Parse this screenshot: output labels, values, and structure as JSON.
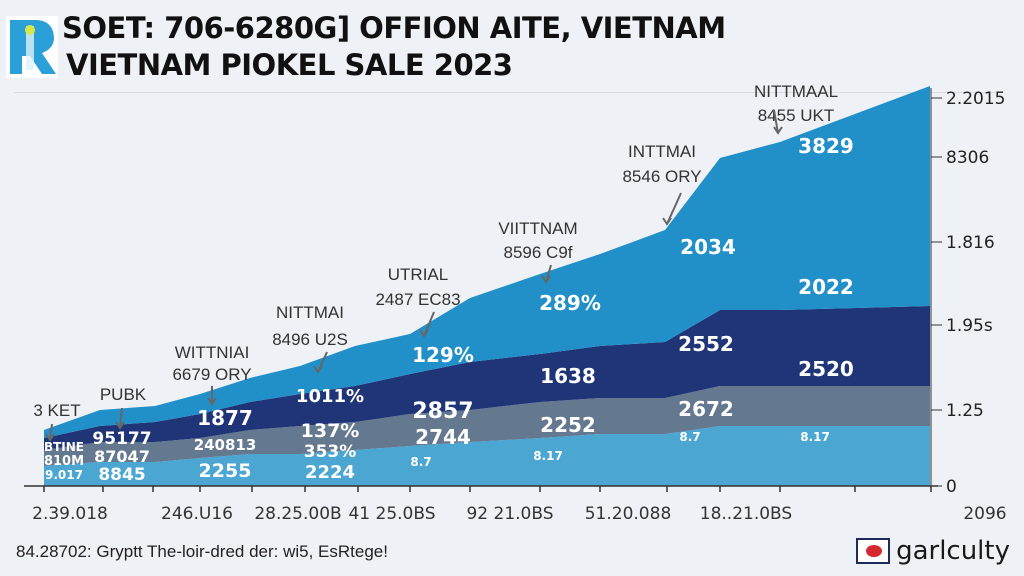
{
  "header": {
    "title_line1": "SOET: 706-6280G] OFFION AITE, VIETNAM",
    "title_line2": "VIETNAM PIOKEL SALE 2023",
    "logo_icon": "r-letter-logo-icon"
  },
  "colors": {
    "layer_top": "#2190c8",
    "layer_navy": "#1f3577",
    "layer_slate": "#64788f",
    "layer_base": "#4ca6d2",
    "background": "#eef1f5"
  },
  "chart_data": {
    "type": "area",
    "stacked": true,
    "title": "VIETNAM PIOKEL SALE 2023",
    "x_tick_labels": [
      "2.39.018",
      "246.U16",
      "28.25.00B",
      "41 25.0BS",
      "92 21.0BS",
      "51.20.088",
      "18..21.0BS",
      "2096"
    ],
    "y_axis_side": "right",
    "y_tick_labels": [
      "0",
      "1.25",
      "1.95s",
      "1.816",
      "8306",
      "2.2015"
    ],
    "y_units": "relative (0-100 of axis height)",
    "ylim": [
      0,
      100
    ],
    "x": [
      0,
      1,
      2,
      3,
      4,
      5,
      6,
      7,
      8,
      9,
      10,
      11,
      12,
      13,
      14
    ],
    "series": [
      {
        "name": "base",
        "values": [
          5,
          6,
          6,
          7,
          8,
          8,
          9,
          10,
          11,
          12,
          13,
          13,
          15,
          15,
          15
        ]
      },
      {
        "name": "slate",
        "values": [
          4,
          5,
          5,
          5,
          6,
          7,
          7,
          8,
          8,
          9,
          9,
          9,
          10,
          10,
          10
        ]
      },
      {
        "name": "navy",
        "values": [
          3,
          4,
          5,
          6,
          7,
          8,
          9,
          10,
          12,
          12,
          13,
          14,
          19,
          19,
          20
        ]
      },
      {
        "name": "top",
        "values": [
          2,
          4,
          4,
          5,
          6,
          7,
          10,
          10,
          16,
          20,
          23,
          28,
          38,
          42,
          55
        ]
      }
    ],
    "annotations": [
      {
        "line1": "3 KET",
        "line2": ""
      },
      {
        "line1": "PUBK",
        "line2": ""
      },
      {
        "line1": "WITTNIAI",
        "line2": "6679 ORY"
      },
      {
        "line1": "NITTMAI",
        "line2": "8496 U2S"
      },
      {
        "line1": "UTRIAL",
        "line2": "2487 EC83"
      },
      {
        "line1": "VIITTNAM",
        "line2": "8596 C9f"
      },
      {
        "line1": "INTTMAI",
        "line2": "8546 ORY"
      },
      {
        "line1": "NITTMAAL",
        "line2": "8455 UKT"
      }
    ],
    "data_labels": [
      {
        "text": "BTINE",
        "layer": "top"
      },
      {
        "text": "810M",
        "layer": "navy"
      },
      {
        "text": "9.017",
        "layer": "base"
      },
      {
        "text": "95177",
        "layer": "top"
      },
      {
        "text": "87047",
        "layer": "navy"
      },
      {
        "text": "8845",
        "layer": "base"
      },
      {
        "text": "1877",
        "layer": "top"
      },
      {
        "text": "240813",
        "layer": "navy"
      },
      {
        "text": "2255",
        "layer": "base"
      },
      {
        "text": "1011%",
        "layer": "top"
      },
      {
        "text": "137%",
        "layer": "navy"
      },
      {
        "text": "353%",
        "layer": "slate"
      },
      {
        "text": "2224",
        "layer": "base"
      },
      {
        "text": "129%",
        "layer": "top"
      },
      {
        "text": "2857",
        "layer": "navy"
      },
      {
        "text": "2744",
        "layer": "slate"
      },
      {
        "text": "8.7",
        "layer": "base"
      },
      {
        "text": "289%",
        "layer": "top"
      },
      {
        "text": "1638",
        "layer": "navy"
      },
      {
        "text": "2252",
        "layer": "slate"
      },
      {
        "text": "8.17",
        "layer": "base"
      },
      {
        "text": "2034",
        "layer": "top"
      },
      {
        "text": "2552",
        "layer": "navy"
      },
      {
        "text": "2672",
        "layer": "slate"
      },
      {
        "text": "8.7",
        "layer": "base"
      },
      {
        "text": "3829",
        "layer": "top"
      },
      {
        "text": "2022",
        "layer": "navy"
      },
      {
        "text": "2520",
        "layer": "slate"
      },
      {
        "text": "8.17",
        "layer": "base"
      }
    ]
  },
  "footer": {
    "note": "84.28702: Gryptt The-loir-dred der: wi5, EsRtege!",
    "brand": "garlculty",
    "brand_icon": "garlculty-logo-icon"
  }
}
